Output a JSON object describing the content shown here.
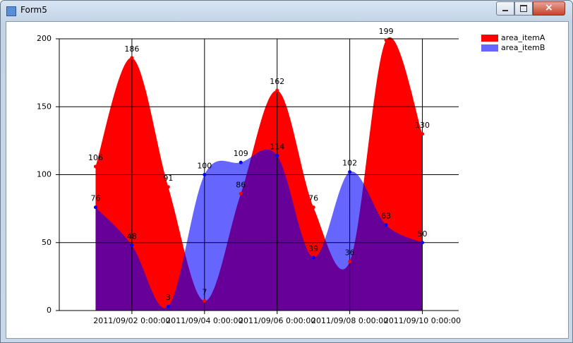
{
  "window": {
    "title": "Form5"
  },
  "chart_data": {
    "type": "area",
    "categories": [
      null,
      "2011/09/02 0:00:00",
      null,
      "2011/09/04 0:00:00",
      null,
      "2011/09/06 0:00:00",
      null,
      "2011/09/08 0:00:00",
      null,
      "2011/09/10 0:00:00"
    ],
    "series": [
      {
        "name": "area_itemA",
        "color": "#ff0000",
        "values": [
          106,
          186,
          91,
          7,
          86,
          162,
          76,
          36,
          199,
          130
        ]
      },
      {
        "name": "area_itemB",
        "color": "#0000ff",
        "opacity": 0.6,
        "values": [
          76,
          48,
          3,
          100,
          109,
          114,
          39,
          102,
          63,
          50
        ]
      }
    ],
    "ylim": [
      0,
      200
    ],
    "yticks": [
      0,
      50,
      100,
      150,
      200
    ],
    "grid": true,
    "legend": "top-right"
  }
}
